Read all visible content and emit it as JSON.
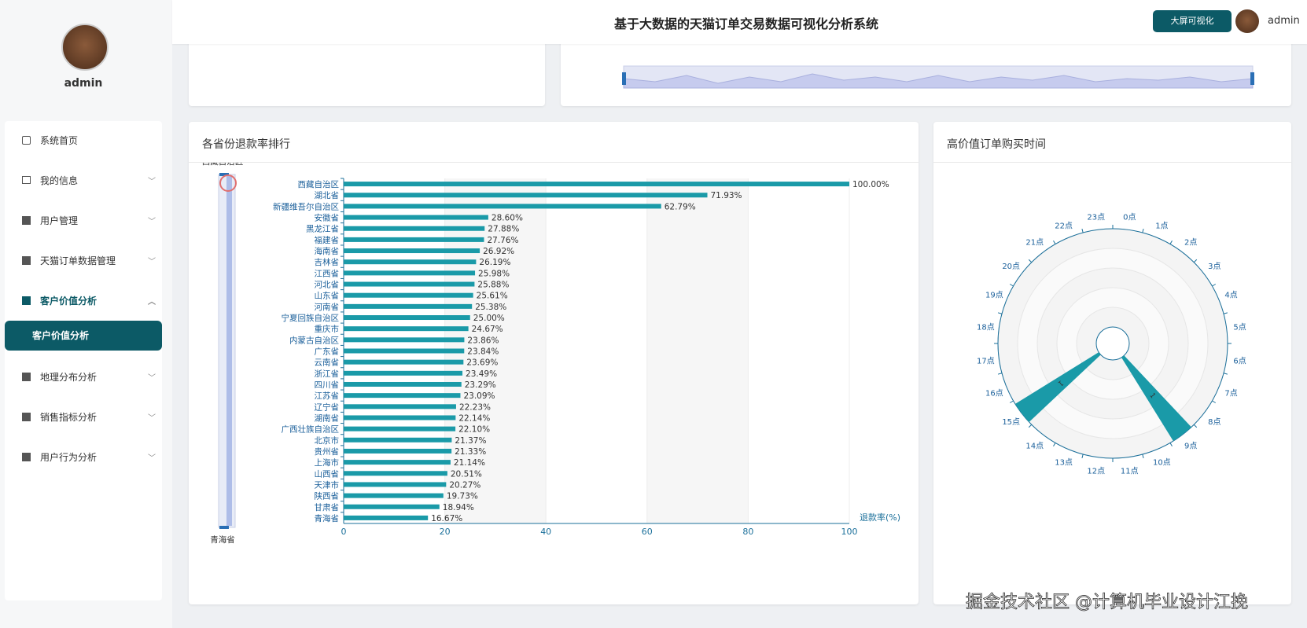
{
  "header": {
    "title": "基于大数据的天猫订单交易数据可视化分析系统",
    "button": "大屏可视化",
    "user": "admin"
  },
  "sidebar": {
    "user": "admin",
    "menu": [
      "系统首页",
      "我的信息",
      "用户管理",
      "天猫订单数据管理",
      "客户价值分析"
    ],
    "submenu": "客户价值分析",
    "menu_after": [
      "地理分布分析",
      "销售指标分析",
      "用户行为分析"
    ]
  },
  "watermark": "掘金技术社区 @计算机毕业设计江挽",
  "chart_data": [
    {
      "type": "hbar",
      "title": "各省份退款率排行",
      "x_label": "退款率(%)",
      "color": "#1a9aa8",
      "categories": [
        "西藏自治区",
        "湖北省",
        "新疆维吾尔自治区",
        "安徽省",
        "黑龙江省",
        "福建省",
        "海南省",
        "吉林省",
        "江西省",
        "河北省",
        "山东省",
        "河南省",
        "宁夏回族自治区",
        "重庆市",
        "内蒙古自治区",
        "广东省",
        "云南省",
        "浙江省",
        "四川省",
        "江苏省",
        "辽宁省",
        "湖南省",
        "广西壮族自治区",
        "北京市",
        "贵州省",
        "上海市",
        "山西省",
        "天津市",
        "陕西省",
        "甘肃省",
        "青海省"
      ],
      "values": [
        100,
        71.93,
        62.79,
        28.6,
        27.88,
        27.76,
        26.92,
        26.19,
        25.98,
        25.88,
        25.61,
        25.38,
        25.0,
        24.67,
        23.86,
        23.84,
        23.69,
        23.49,
        23.29,
        23.09,
        22.23,
        22.14,
        22.1,
        21.37,
        21.33,
        21.14,
        20.51,
        20.27,
        19.73,
        18.94,
        16.67
      ],
      "value_labels": [
        "100.00%",
        "71.93%",
        "62.79%",
        "28.60%",
        "27.88%",
        "27.76%",
        "26.92%",
        "26.19%",
        "25.98%",
        "25.88%",
        "25.61%",
        "25.38%",
        "25.00%",
        "24.67%",
        "23.86%",
        "23.84%",
        "23.69%",
        "23.49%",
        "23.29%",
        "23.09%",
        "22.23%",
        "22.14%",
        "22.10%",
        "21.37%",
        "21.33%",
        "21.14%",
        "20.51%",
        "20.27%",
        "19.73%",
        "18.94%",
        "16.67%"
      ],
      "xlim": [
        0,
        100
      ],
      "xticks": [
        0,
        20,
        40,
        60,
        80,
        100
      ]
    },
    {
      "type": "polar_bar",
      "title": "高价值订单购买时间",
      "color": "#1a9aa8",
      "categories": [
        "0点",
        "1点",
        "2点",
        "3点",
        "4点",
        "5点",
        "6点",
        "7点",
        "8点",
        "9点",
        "10点",
        "11点",
        "12点",
        "13点",
        "14点",
        "15点",
        "16点",
        "17点",
        "18点",
        "19点",
        "20点",
        "21点",
        "22点",
        "23点"
      ],
      "values": [
        0,
        0,
        0,
        0,
        0,
        0,
        0,
        0,
        0,
        1,
        0,
        0,
        0,
        0,
        0,
        1,
        0,
        0,
        0,
        0,
        0,
        0,
        0,
        0
      ],
      "rlim": [
        0,
        1
      ]
    }
  ]
}
